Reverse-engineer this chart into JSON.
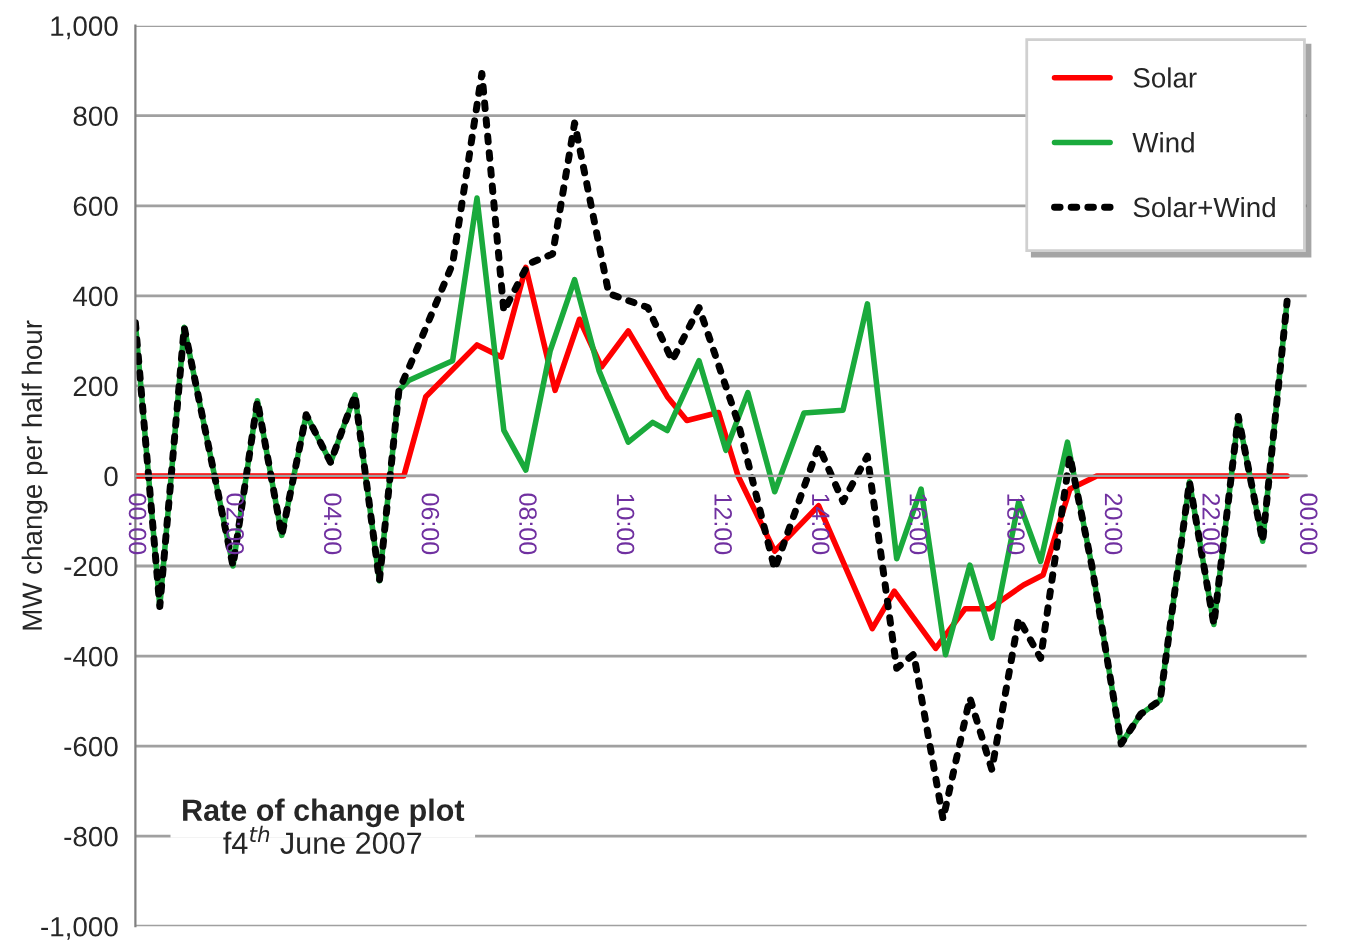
{
  "chart_data": {
    "type": "line",
    "ylabel": "MW change per half hour",
    "annotations": [
      "Rate of change plot",
      "f4$^{th}$ June 2007"
    ],
    "xlim": [
      0,
      24
    ],
    "xticks": [
      {
        "value": 0,
        "label": "00:00"
      },
      {
        "value": 2,
        "label": "02:00"
      },
      {
        "value": 4,
        "label": "04:00"
      },
      {
        "value": 6,
        "label": "06:00"
      },
      {
        "value": 8,
        "label": "08:00"
      },
      {
        "value": 10,
        "label": "10:00"
      },
      {
        "value": 12,
        "label": "12:00"
      },
      {
        "value": 14,
        "label": "14:00"
      },
      {
        "value": 16,
        "label": "16:00"
      },
      {
        "value": 18,
        "label": "18:00"
      },
      {
        "value": 20,
        "label": "20:00"
      },
      {
        "value": 22,
        "label": "22:00"
      },
      {
        "value": 24,
        "label": "00:00"
      }
    ],
    "ylim": [
      -1000,
      1000
    ],
    "yticks": [
      {
        "value": -1000,
        "label": "-1,000"
      },
      -800,
      -600,
      -400,
      -200,
      0,
      200,
      400,
      600,
      800,
      {
        "value": 1000,
        "label": "1,000"
      }
    ],
    "grid": "y",
    "legend": "top right",
    "marker": "none",
    "series": [
      {
        "name": "Solar",
        "color": "#ff0000",
        "line_style": "solid",
        "x": [
          0,
          5.5,
          5.95,
          7.0,
          7.5,
          8.0,
          8.6,
          9.1,
          9.55,
          10.1,
          10.9,
          11.3,
          11.95,
          12.35,
          13.1,
          14.0,
          15.1,
          15.55,
          16.4,
          17.0,
          17.5,
          18.2,
          18.6,
          19.15,
          19.7,
          23.6
        ],
        "values": [
          0,
          0,
          176,
          291,
          264,
          463,
          190,
          348,
          242,
          322,
          176,
          123,
          141,
          0,
          -167,
          -66,
          -339,
          -256,
          -383,
          -295,
          -295,
          -242,
          -220,
          -29,
          0,
          0
        ]
      },
      {
        "name": "Wind",
        "color": "#1aaa3c",
        "line_style": "solid",
        "x": [
          0,
          0.5,
          1.0,
          2.0,
          2.5,
          3.0,
          3.5,
          4.0,
          4.5,
          5.0,
          5.4,
          5.6,
          6.5,
          7.0,
          7.55,
          8.0,
          8.5,
          9.0,
          9.5,
          10.1,
          10.6,
          10.9,
          11.55,
          12.1,
          12.55,
          13.1,
          13.7,
          14.5,
          15.0,
          15.6,
          16.1,
          16.6,
          17.1,
          17.55,
          18.1,
          18.55,
          19.1,
          19.6,
          20.2,
          20.6,
          21.0,
          21.6,
          22.1,
          22.6,
          23.1,
          23.6
        ],
        "values": [
          340,
          -290,
          330,
          -200,
          167,
          -132,
          136,
          30,
          180,
          -233,
          190,
          212,
          256,
          617,
          101,
          13,
          278,
          436,
          234,
          75,
          119,
          101,
          256,
          57,
          185,
          -35,
          140,
          146,
          382,
          -184,
          -29,
          -397,
          -198,
          -360,
          -57,
          -190,
          75,
          -200,
          -595,
          -529,
          -498,
          -13,
          -330,
          132,
          -145,
          388
        ]
      },
      {
        "name": "Solar+Wind",
        "color": "#000000",
        "line_style": "dotted",
        "x": [
          0,
          0.5,
          1.0,
          2.0,
          2.5,
          3.0,
          3.5,
          4.0,
          4.5,
          5.0,
          5.4,
          5.7,
          6.5,
          7.1,
          7.55,
          8.05,
          8.55,
          9.0,
          9.7,
          10.5,
          11.0,
          11.55,
          12.35,
          13.1,
          14.0,
          14.5,
          15.0,
          15.6,
          15.95,
          16.55,
          17.1,
          17.55,
          18.1,
          18.55,
          19.15,
          19.6,
          20.2,
          20.6,
          21.0,
          21.6,
          22.1,
          22.6,
          23.1,
          23.6
        ],
        "values": [
          340,
          -290,
          330,
          -200,
          167,
          -132,
          136,
          30,
          180,
          -233,
          190,
          264,
          471,
          894,
          366,
          471,
          493,
          784,
          405,
          374,
          256,
          374,
          119,
          -207,
          66,
          -57,
          44,
          -427,
          -396,
          -762,
          -493,
          -652,
          -317,
          -405,
          44,
          -200,
          -595,
          -529,
          -498,
          -13,
          -330,
          132,
          -145,
          388
        ]
      }
    ]
  }
}
